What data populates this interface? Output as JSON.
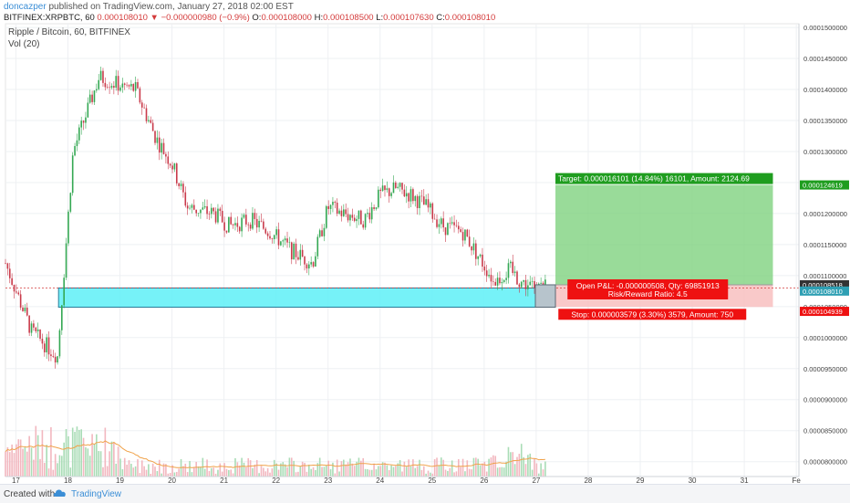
{
  "header": {
    "author": "doncazper",
    "published": "published on TradingView.com, January 27, 2018 02:00 EST",
    "symbol_interval": "BITFINEX:XRPBTC, 60",
    "last": "0.000108010",
    "change": "▼ −0.000000980 (−0.9%)",
    "o_label": "O:",
    "o_value": "0.000108000",
    "h_label": "H:",
    "h_value": "0.000108500",
    "l_label": "L:",
    "l_value": "0.000107630",
    "c_label": "C:",
    "c_value": "0.000108010"
  },
  "legend": {
    "symbol": "Ripple / Bitcoin, 60, BITFINEX",
    "volume": "Vol (20)"
  },
  "position": {
    "target_text": "Target: 0.000016101 (14.84%) 16101, Amount: 2124.69",
    "open_pl_text": "Open P&L: -0.000000508, Qty: 69851913",
    "risk_reward_text": "Risk/Reward Ratio: 4.5",
    "stop_text": "Stop: 0.000003579 (3.30%) 3579, Amount: 750",
    "target_price": 0.00012461,
    "entry_price": 0.00010851,
    "stop_price": 0.00010493,
    "target_label": "0.000124619",
    "entry_label": "0.000108518",
    "current_label": "0.000108010",
    "stop_label": "0.000104939"
  },
  "support_zone": {
    "top": 0.000108,
    "bottom": 0.0001049
  },
  "chart_data": {
    "type": "candlestick",
    "title": "Ripple / Bitcoin, 60, BITFINEX",
    "y_ticks": [
      "0.0001500000",
      "0.0001450000",
      "0.0001400000",
      "0.0001350000",
      "0.0001300000",
      "0.0001250000",
      "0.0001200000",
      "0.0001150000",
      "0.0001100000",
      "0.0001050000",
      "0.0001000000",
      "0.0000950000",
      "0.0000900000",
      "0.0000850000",
      "0.0000800000"
    ],
    "y_tick_values": [
      0.00015,
      0.000145,
      0.00014,
      0.000135,
      0.00013,
      0.000125,
      0.00012,
      0.000115,
      0.00011,
      0.000105,
      0.0001,
      9.5e-05,
      9e-05,
      8.5e-05,
      8e-05
    ],
    "ylim": [
      7.76e-05,
      0.0001506
    ],
    "x_ticks": [
      "17",
      "18",
      "19",
      "20",
      "21",
      "22",
      "23",
      "24",
      "25",
      "26",
      "27",
      "28",
      "29",
      "30",
      "31",
      "Fe"
    ],
    "x_tick_days": [
      17,
      18,
      19,
      20,
      21,
      22,
      23,
      24,
      25,
      26,
      27,
      28,
      29,
      30,
      31,
      32
    ],
    "xlim_days": [
      16.8,
      32.05
    ],
    "price_path_days": [
      16.8,
      17.3,
      17.8,
      18.1,
      18.6,
      18.9,
      19.3,
      19.7,
      20.0,
      20.3,
      20.8,
      21.1,
      21.5,
      21.9,
      22.3,
      22.7,
      23.0,
      23.3,
      23.7,
      24.0,
      24.3,
      24.6,
      24.9,
      25.2,
      25.6,
      25.9,
      26.2,
      26.5,
      26.7,
      27.0,
      27.2
    ],
    "price_path_values": [
      0.000112,
      0.000101,
      9.7e-05,
      0.00013,
      0.000142,
      0.000141,
      0.00014,
      0.000132,
      0.000128,
      0.000121,
      0.00012,
      0.000118,
      0.000119,
      0.000117,
      0.000114,
      0.000112,
      0.000121,
      0.00012,
      0.000119,
      0.000123,
      0.000124,
      0.000123,
      0.000121,
      0.000118,
      0.000117,
      0.000113,
      0.000109,
      0.000111,
      0.000109,
      0.000108,
      0.000108
    ],
    "volume_ma_label": "Vol (20)"
  }
}
